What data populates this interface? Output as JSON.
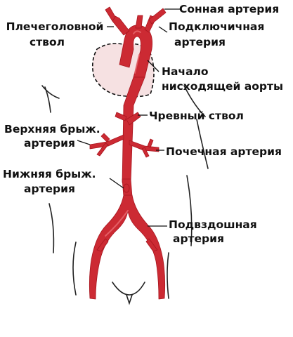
{
  "labels": {
    "carotid_artery": "Сонная артерия",
    "brachiocephalic_trunk_1": "Плечеголовной",
    "brachiocephalic_trunk_2": "ствол",
    "subclavian_artery_1": "Подключичная",
    "subclavian_artery_2": "артерия",
    "descending_aorta_1": "Начало",
    "descending_aorta_2": "нисходящей аорты",
    "celiac_trunk": "Чревный ствол",
    "superior_mesenteric_1": "Верхняя брыж.",
    "superior_mesenteric_2": "артерия",
    "renal_artery": "Почечная артерия",
    "inferior_mesenteric_1": "Нижняя брыж.",
    "inferior_mesenteric_2": "артерия",
    "iliac_artery_1": "Подвздошная",
    "iliac_artery_2": "артерия"
  },
  "colors": {
    "artery": "#cc2a33",
    "artery_highlight": "#e86a70",
    "heart_fill": "#f6e1e2",
    "body_outline": "#222222",
    "label_line": "#111111"
  }
}
